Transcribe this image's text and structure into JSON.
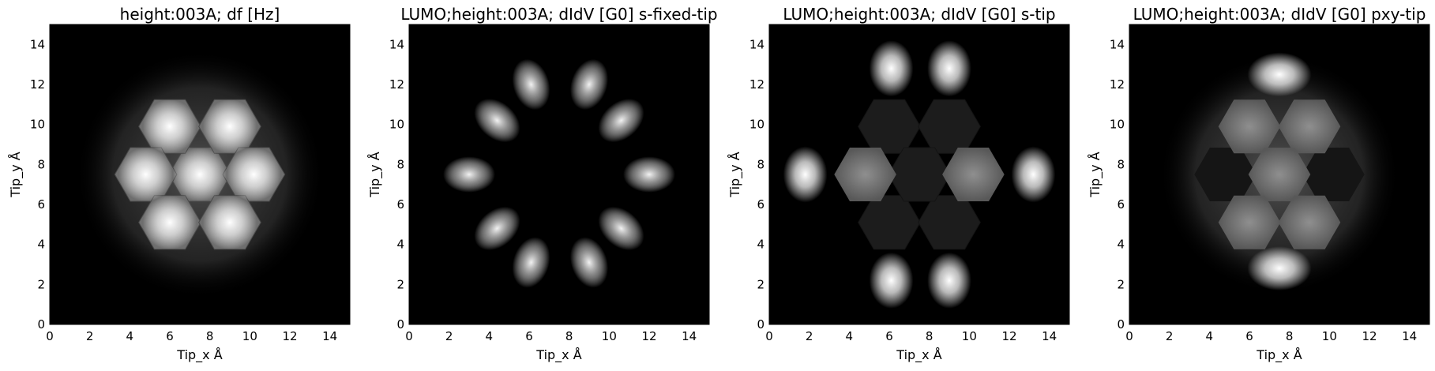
{
  "chart_data": [
    {
      "type": "heatmap",
      "title": "height:003A; df [Hz]",
      "xlabel": "Tip_x Å",
      "ylabel": "Tip_y Å",
      "xlim": [
        0,
        15
      ],
      "ylim": [
        0,
        15
      ],
      "xticks": [
        "0",
        "2",
        "4",
        "6",
        "8",
        "10",
        "12",
        "14"
      ],
      "yticks": [
        "0",
        "2",
        "4",
        "6",
        "8",
        "10",
        "12",
        "14"
      ],
      "colormap": "gray",
      "grid": false,
      "features": [
        {
          "label": "bright ring center",
          "x": 7.5,
          "y": 7.5
        },
        {
          "label": "bright ring",
          "x": 6.0,
          "y": 9.9
        },
        {
          "label": "bright ring",
          "x": 9.0,
          "y": 9.9
        },
        {
          "label": "bright ring",
          "x": 4.8,
          "y": 7.5
        },
        {
          "label": "bright ring",
          "x": 10.2,
          "y": 7.5
        },
        {
          "label": "bright ring",
          "x": 6.0,
          "y": 5.1
        },
        {
          "label": "bright ring",
          "x": 9.0,
          "y": 5.1
        }
      ]
    },
    {
      "type": "heatmap",
      "title": "LUMO;height:003A; dIdV [G0] s-fixed-tip",
      "xlabel": "Tip_x Å",
      "ylabel": "Tip_y Å",
      "xlim": [
        0,
        15
      ],
      "ylim": [
        0,
        15
      ],
      "xticks": [
        "0",
        "2",
        "4",
        "6",
        "8",
        "10",
        "12",
        "14"
      ],
      "yticks": [
        "0",
        "2",
        "4",
        "6",
        "8",
        "10",
        "12",
        "14"
      ],
      "colormap": "gray",
      "grid": false,
      "features": [
        {
          "label": "bright lobe",
          "x": 6.1,
          "y": 12.0
        },
        {
          "label": "bright lobe",
          "x": 9.0,
          "y": 12.0
        },
        {
          "label": "bright lobe",
          "x": 4.4,
          "y": 10.2
        },
        {
          "label": "bright lobe",
          "x": 10.6,
          "y": 10.2
        },
        {
          "label": "bright lobe",
          "x": 3.0,
          "y": 7.5
        },
        {
          "label": "bright lobe",
          "x": 12.0,
          "y": 7.5
        },
        {
          "label": "bright lobe",
          "x": 4.4,
          "y": 4.8
        },
        {
          "label": "bright lobe",
          "x": 10.6,
          "y": 4.8
        },
        {
          "label": "bright lobe",
          "x": 6.1,
          "y": 3.1
        },
        {
          "label": "bright lobe",
          "x": 9.0,
          "y": 3.1
        }
      ]
    },
    {
      "type": "heatmap",
      "title": "LUMO;height:003A; dIdV [G0] s-tip",
      "xlabel": "Tip_x Å",
      "ylabel": "Tip_y Å",
      "xlim": [
        0,
        15
      ],
      "ylim": [
        0,
        15
      ],
      "xticks": [
        "0",
        "2",
        "4",
        "6",
        "8",
        "10",
        "12",
        "14"
      ],
      "yticks": [
        "0",
        "2",
        "4",
        "6",
        "8",
        "10",
        "12",
        "14"
      ],
      "colormap": "gray",
      "grid": false,
      "features": [
        {
          "label": "bright lobe",
          "x": 6.1,
          "y": 12.8
        },
        {
          "label": "bright lobe",
          "x": 9.0,
          "y": 12.8
        },
        {
          "label": "bright lobe",
          "x": 1.8,
          "y": 7.5
        },
        {
          "label": "bright lobe",
          "x": 13.2,
          "y": 7.5
        },
        {
          "label": "bright lobe",
          "x": 6.1,
          "y": 2.2
        },
        {
          "label": "bright lobe",
          "x": 9.0,
          "y": 2.2
        },
        {
          "label": "gray ring",
          "x": 4.8,
          "y": 7.5
        },
        {
          "label": "gray ring",
          "x": 10.2,
          "y": 7.5
        }
      ]
    },
    {
      "type": "heatmap",
      "title": "LUMO;height:003A; dIdV [G0] pxy-tip",
      "xlabel": "Tip_x Å",
      "ylabel": "Tip_y Å",
      "xlim": [
        0,
        15
      ],
      "ylim": [
        0,
        15
      ],
      "xticks": [
        "0",
        "2",
        "4",
        "6",
        "8",
        "10",
        "12",
        "14"
      ],
      "yticks": [
        "0",
        "2",
        "4",
        "6",
        "8",
        "10",
        "12",
        "14"
      ],
      "colormap": "gray",
      "grid": false,
      "features": [
        {
          "label": "bright lobe",
          "x": 7.5,
          "y": 12.5
        },
        {
          "label": "bright lobe",
          "x": 7.5,
          "y": 2.8
        },
        {
          "label": "gray ring",
          "x": 6.0,
          "y": 9.9
        },
        {
          "label": "gray ring",
          "x": 9.0,
          "y": 9.9
        },
        {
          "label": "gray ring",
          "x": 7.5,
          "y": 7.5
        },
        {
          "label": "gray ring",
          "x": 6.0,
          "y": 5.1
        },
        {
          "label": "gray ring",
          "x": 9.0,
          "y": 5.1
        }
      ]
    }
  ]
}
